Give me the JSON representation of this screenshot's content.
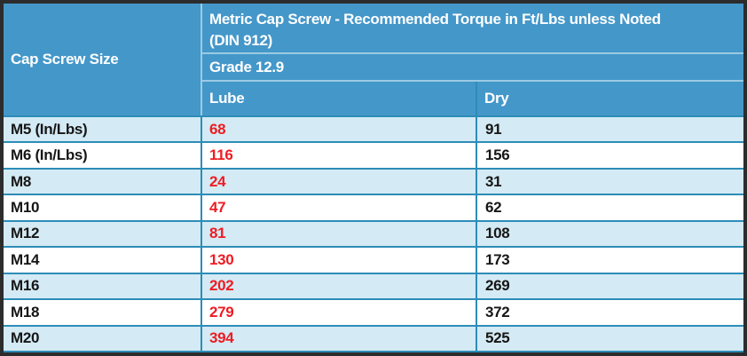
{
  "table": {
    "corner_header": "Cap Screw Size",
    "title": "Metric Cap Screw - Recommended Torque in Ft/Lbs unless Noted\n(DIN 912)",
    "grade": "Grade 12.9",
    "columns": [
      "Lube",
      "Dry"
    ],
    "rows": [
      {
        "size": "M5 (In/Lbs)",
        "lube": "68",
        "dry": "91"
      },
      {
        "size": "M6 (In/Lbs)",
        "lube": "116",
        "dry": "156"
      },
      {
        "size": "M8",
        "lube": "24",
        "dry": "31"
      },
      {
        "size": "M10",
        "lube": "47",
        "dry": "62"
      },
      {
        "size": "M12",
        "lube": "81",
        "dry": "108"
      },
      {
        "size": "M14",
        "lube": "130",
        "dry": "173"
      },
      {
        "size": "M16",
        "lube": "202",
        "dry": "269"
      },
      {
        "size": "M18",
        "lube": "279",
        "dry": "372"
      },
      {
        "size": "M20",
        "lube": "394",
        "dry": "525"
      }
    ],
    "colors": {
      "header_bg": "#4497c9",
      "header_text": "#ffffff",
      "row_light_bg": "#d4eaf4",
      "row_white_bg": "#ffffff",
      "grid_line": "#2d8db8",
      "header_grid_line": "#9ccbe3",
      "lube_text": "#ee1c23",
      "body_text": "#161616",
      "outer_border": "#2c2c2c"
    }
  },
  "chart_data": {
    "type": "table",
    "title": "Metric Cap Screw - Recommended Torque in Ft/Lbs unless Noted (DIN 912)",
    "subtitle": "Grade 12.9",
    "columns": [
      "Cap Screw Size",
      "Lube",
      "Dry"
    ],
    "rows": [
      [
        "M5 (In/Lbs)",
        68,
        91
      ],
      [
        "M6 (In/Lbs)",
        116,
        156
      ],
      [
        "M8",
        24,
        31
      ],
      [
        "M10",
        47,
        62
      ],
      [
        "M12",
        81,
        108
      ],
      [
        "M14",
        130,
        173
      ],
      [
        "M16",
        202,
        269
      ],
      [
        "M18",
        279,
        372
      ],
      [
        "M20",
        394,
        525
      ]
    ]
  }
}
